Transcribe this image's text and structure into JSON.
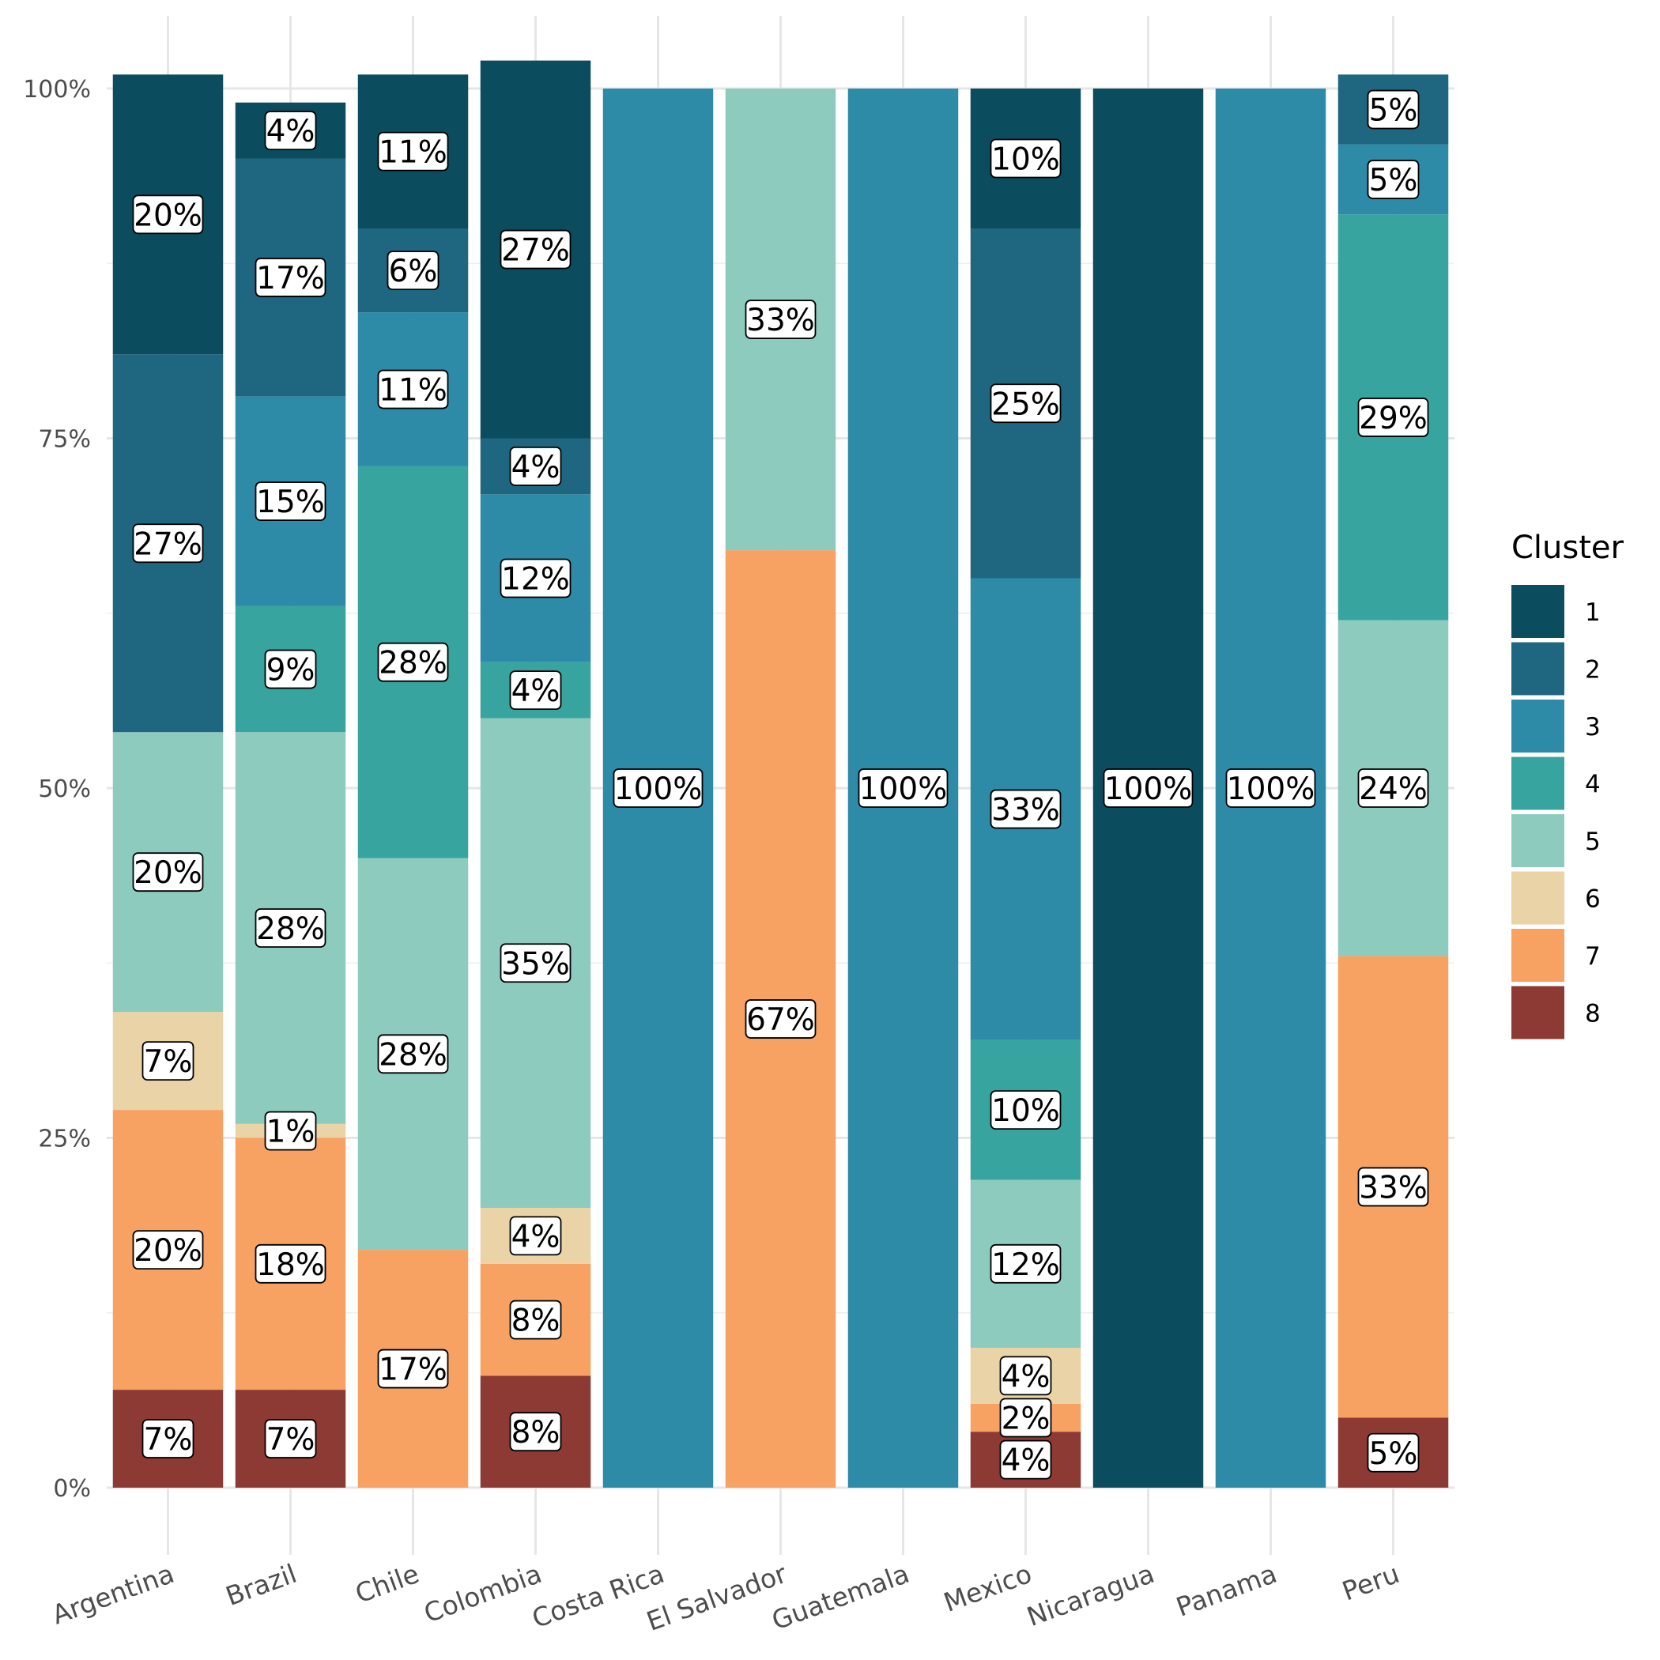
{
  "chart_data": {
    "type": "bar",
    "stacked": true,
    "normalized": true,
    "title": "",
    "xlabel": "",
    "ylabel": "",
    "ylim": [
      0,
      1
    ],
    "y_ticks": [
      {
        "value": 0,
        "label": "0%"
      },
      {
        "value": 0.25,
        "label": "25%"
      },
      {
        "value": 0.5,
        "label": "50%"
      },
      {
        "value": 0.75,
        "label": "75%"
      },
      {
        "value": 1,
        "label": "100%"
      }
    ],
    "grid": true,
    "legend": {
      "title": "Cluster",
      "position": "right"
    },
    "categories": [
      "Argentina",
      "Brazil",
      "Chile",
      "Colombia",
      "Costa Rica",
      "El Salvador",
      "Guatemala",
      "Mexico",
      "Nicaragua",
      "Panama",
      "Peru"
    ],
    "series": [
      {
        "name": "1",
        "color": "#0b4d5e",
        "values": [
          0.2,
          0.04,
          0.11,
          0.27,
          0,
          0,
          0,
          0.1,
          1.0,
          0,
          0
        ],
        "labels": [
          "20%",
          "4%",
          "11%",
          "27%",
          "",
          "",
          "",
          "10%",
          "100%",
          "",
          ""
        ]
      },
      {
        "name": "2",
        "color": "#1f6680",
        "values": [
          0.27,
          0.17,
          0.06,
          0.04,
          0,
          0,
          0,
          0.25,
          0,
          0,
          0.05
        ],
        "labels": [
          "27%",
          "17%",
          "6%",
          "4%",
          "",
          "",
          "",
          "25%",
          "",
          "",
          "5%"
        ]
      },
      {
        "name": "3",
        "color": "#2e8ba8",
        "values": [
          0,
          0.15,
          0.11,
          0.12,
          1.0,
          0,
          1.0,
          0.33,
          0,
          1.0,
          0.05
        ],
        "labels": [
          "",
          "15%",
          "11%",
          "12%",
          "100%",
          "",
          "100%",
          "33%",
          "",
          "100%",
          "5%"
        ]
      },
      {
        "name": "4",
        "color": "#38a4a0",
        "values": [
          0,
          0.09,
          0.28,
          0.04,
          0,
          0,
          0,
          0.1,
          0,
          0,
          0.29
        ],
        "labels": [
          "",
          "9%",
          "28%",
          "4%",
          "",
          "",
          "",
          "10%",
          "",
          "",
          "29%"
        ]
      },
      {
        "name": "5",
        "color": "#8ecbbf",
        "values": [
          0.2,
          0.28,
          0.28,
          0.35,
          0,
          0.33,
          0,
          0.12,
          0,
          0,
          0.24
        ],
        "labels": [
          "20%",
          "28%",
          "28%",
          "35%",
          "",
          "33%",
          "",
          "12%",
          "",
          "",
          "24%"
        ]
      },
      {
        "name": "6",
        "color": "#ead3a6",
        "values": [
          0.07,
          0.01,
          0,
          0.04,
          0,
          0,
          0,
          0.04,
          0,
          0,
          0
        ],
        "labels": [
          "7%",
          "1%",
          "",
          "4%",
          "",
          "",
          "",
          "4%",
          "",
          "",
          ""
        ]
      },
      {
        "name": "7",
        "color": "#f7a162",
        "values": [
          0.2,
          0.18,
          0.17,
          0.08,
          0,
          0.67,
          0,
          0.02,
          0,
          0,
          0.33
        ],
        "labels": [
          "20%",
          "18%",
          "17%",
          "8%",
          "",
          "67%",
          "",
          "2%",
          "",
          "",
          "33%"
        ]
      },
      {
        "name": "8",
        "color": "#8c3a33",
        "values": [
          0.07,
          0.07,
          0,
          0.08,
          0,
          0,
          0,
          0.04,
          0,
          0,
          0.05
        ],
        "labels": [
          "7%",
          "7%",
          "",
          "8%",
          "",
          "",
          "",
          "4%",
          "",
          "",
          "5%"
        ]
      }
    ]
  }
}
